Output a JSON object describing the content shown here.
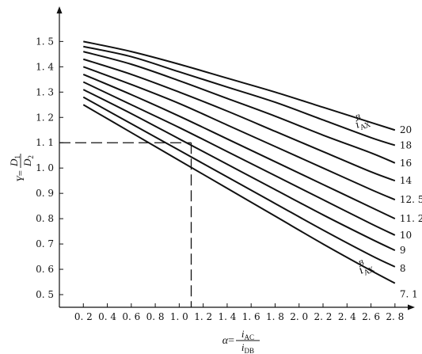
{
  "chart_data": {
    "type": "line",
    "xlabel": {
      "var": "α",
      "num": "i",
      "num_sub": "AC",
      "den": "i",
      "den_sub": "DB"
    },
    "ylabel": {
      "var": "Y",
      "num": "D",
      "num_sub": "1",
      "den": "D",
      "den_sub": "2"
    },
    "x_ticks": [
      "0.2",
      "0.4",
      "0.6",
      "0.8",
      "1.0",
      "1.2",
      "1.4",
      "1.6",
      "1.8",
      "2.0",
      "2.2",
      "2.4",
      "2.6",
      "2.8"
    ],
    "y_ticks": [
      "0.5",
      "0.6",
      "0.7",
      "0.8",
      "0.9",
      "1.0",
      "1.1",
      "1.2",
      "1.3",
      "1.4",
      "1.5"
    ],
    "xlim": [
      0.0,
      2.92
    ],
    "ylim": [
      0.45,
      1.62
    ],
    "group_label": {
      "var": "i",
      "sub": "AX",
      "sup": "B"
    },
    "series": [
      {
        "name": "20",
        "x": [
          0.2,
          0.6,
          1.0,
          1.4,
          1.8,
          2.2,
          2.6,
          2.8
        ],
        "y": [
          1.5,
          1.46,
          1.41,
          1.355,
          1.3,
          1.24,
          1.18,
          1.15
        ]
      },
      {
        "name": "18",
        "x": [
          0.2,
          0.6,
          1.0,
          1.4,
          1.8,
          2.2,
          2.6,
          2.8
        ],
        "y": [
          1.48,
          1.44,
          1.38,
          1.32,
          1.26,
          1.19,
          1.12,
          1.09
        ]
      },
      {
        "name": "16",
        "x": [
          0.2,
          0.6,
          1.0,
          1.4,
          1.8,
          2.2,
          2.6,
          2.8
        ],
        "y": [
          1.46,
          1.41,
          1.345,
          1.275,
          1.205,
          1.13,
          1.06,
          1.02
        ]
      },
      {
        "name": "14",
        "x": [
          0.2,
          0.6,
          1.0,
          1.4,
          1.8,
          2.2,
          2.6,
          2.8
        ],
        "y": [
          1.43,
          1.37,
          1.3,
          1.225,
          1.145,
          1.065,
          0.985,
          0.95
        ]
      },
      {
        "name": "12.5",
        "x": [
          0.2,
          0.6,
          1.0,
          1.4,
          1.8,
          2.2,
          2.6,
          2.8
        ],
        "y": [
          1.4,
          1.33,
          1.255,
          1.17,
          1.085,
          1.0,
          0.915,
          0.875
        ]
      },
      {
        "name": "11.2",
        "x": [
          0.2,
          0.6,
          1.0,
          1.4,
          1.8,
          2.2,
          2.6,
          2.8
        ],
        "y": [
          1.37,
          1.29,
          1.205,
          1.115,
          1.025,
          0.935,
          0.845,
          0.8
        ]
      },
      {
        "name": "10",
        "x": [
          0.2,
          0.6,
          1.0,
          1.4,
          1.8,
          2.2,
          2.6,
          2.8
        ],
        "y": [
          1.34,
          1.25,
          1.16,
          1.065,
          0.97,
          0.875,
          0.78,
          0.735
        ]
      },
      {
        "name": "9",
        "x": [
          0.2,
          0.6,
          1.0,
          1.4,
          1.8,
          2.2,
          2.6,
          2.8
        ],
        "y": [
          1.31,
          1.215,
          1.115,
          1.015,
          0.915,
          0.815,
          0.72,
          0.675
        ]
      },
      {
        "name": "8",
        "x": [
          0.2,
          0.6,
          1.0,
          1.4,
          1.8,
          2.2,
          2.6,
          2.8
        ],
        "y": [
          1.28,
          1.175,
          1.07,
          0.965,
          0.86,
          0.755,
          0.655,
          0.61
        ]
      },
      {
        "name": "7.1",
        "x": [
          0.2,
          0.6,
          1.0,
          1.4,
          1.8,
          2.2,
          2.6,
          2.8
        ],
        "y": [
          1.25,
          1.14,
          1.03,
          0.92,
          0.81,
          0.7,
          0.595,
          0.545
        ]
      }
    ],
    "display_labels": [
      "20",
      "18",
      "16",
      "14",
      "12. 5",
      "11. 2",
      "10",
      "9",
      "8",
      "7. 1"
    ],
    "reference": {
      "x": 1.1,
      "y": 1.1,
      "style": "dashed"
    },
    "grid": false,
    "legend": "none"
  }
}
